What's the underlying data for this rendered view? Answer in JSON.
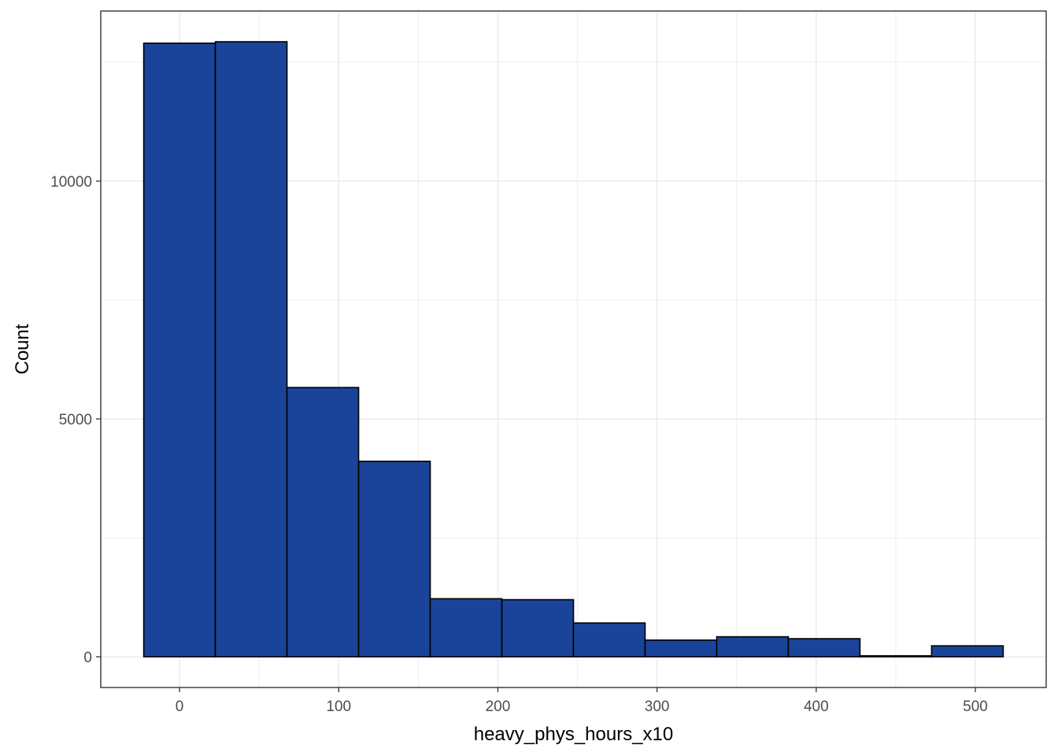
{
  "chart_data": {
    "type": "bar",
    "subtype": "histogram",
    "title": "",
    "xlabel": "heavy_phys_hours_x10",
    "ylabel": "Count",
    "bin_width": 45,
    "bins": [
      {
        "x0": -22.5,
        "x1": 22.5,
        "count": 12900
      },
      {
        "x0": 22.5,
        "x1": 67.5,
        "count": 12930
      },
      {
        "x0": 67.5,
        "x1": 112.5,
        "count": 5660
      },
      {
        "x0": 112.5,
        "x1": 157.5,
        "count": 4110
      },
      {
        "x0": 157.5,
        "x1": 202.5,
        "count": 1220
      },
      {
        "x0": 202.5,
        "x1": 247.5,
        "count": 1200
      },
      {
        "x0": 247.5,
        "x1": 292.5,
        "count": 710
      },
      {
        "x0": 292.5,
        "x1": 337.5,
        "count": 350
      },
      {
        "x0": 337.5,
        "x1": 382.5,
        "count": 420
      },
      {
        "x0": 382.5,
        "x1": 427.5,
        "count": 380
      },
      {
        "x0": 427.5,
        "x1": 472.5,
        "count": 20
      },
      {
        "x0": 472.5,
        "x1": 517.5,
        "count": 230
      }
    ],
    "xlim": [
      -49.5,
      544.5
    ],
    "ylim": [
      -646,
      13576
    ],
    "x_ticks": [
      0,
      100,
      200,
      300,
      400,
      500
    ],
    "x_tick_labels": [
      "0",
      "100",
      "200",
      "300",
      "400",
      "500"
    ],
    "y_ticks": [
      0,
      5000,
      10000
    ],
    "y_tick_labels": [
      "0",
      "5000",
      "10000"
    ],
    "x_minor_gridlines": [
      50,
      150,
      250,
      350,
      450
    ],
    "y_minor_gridlines": [
      2500,
      7500,
      12500
    ],
    "grid": true,
    "legend": "none",
    "colors": {
      "bar_fill": "#1a4499",
      "bar_stroke": "#000000",
      "grid": "#ebebeb",
      "panel_border": "#333333",
      "tick_text": "#4d4d4d"
    }
  }
}
